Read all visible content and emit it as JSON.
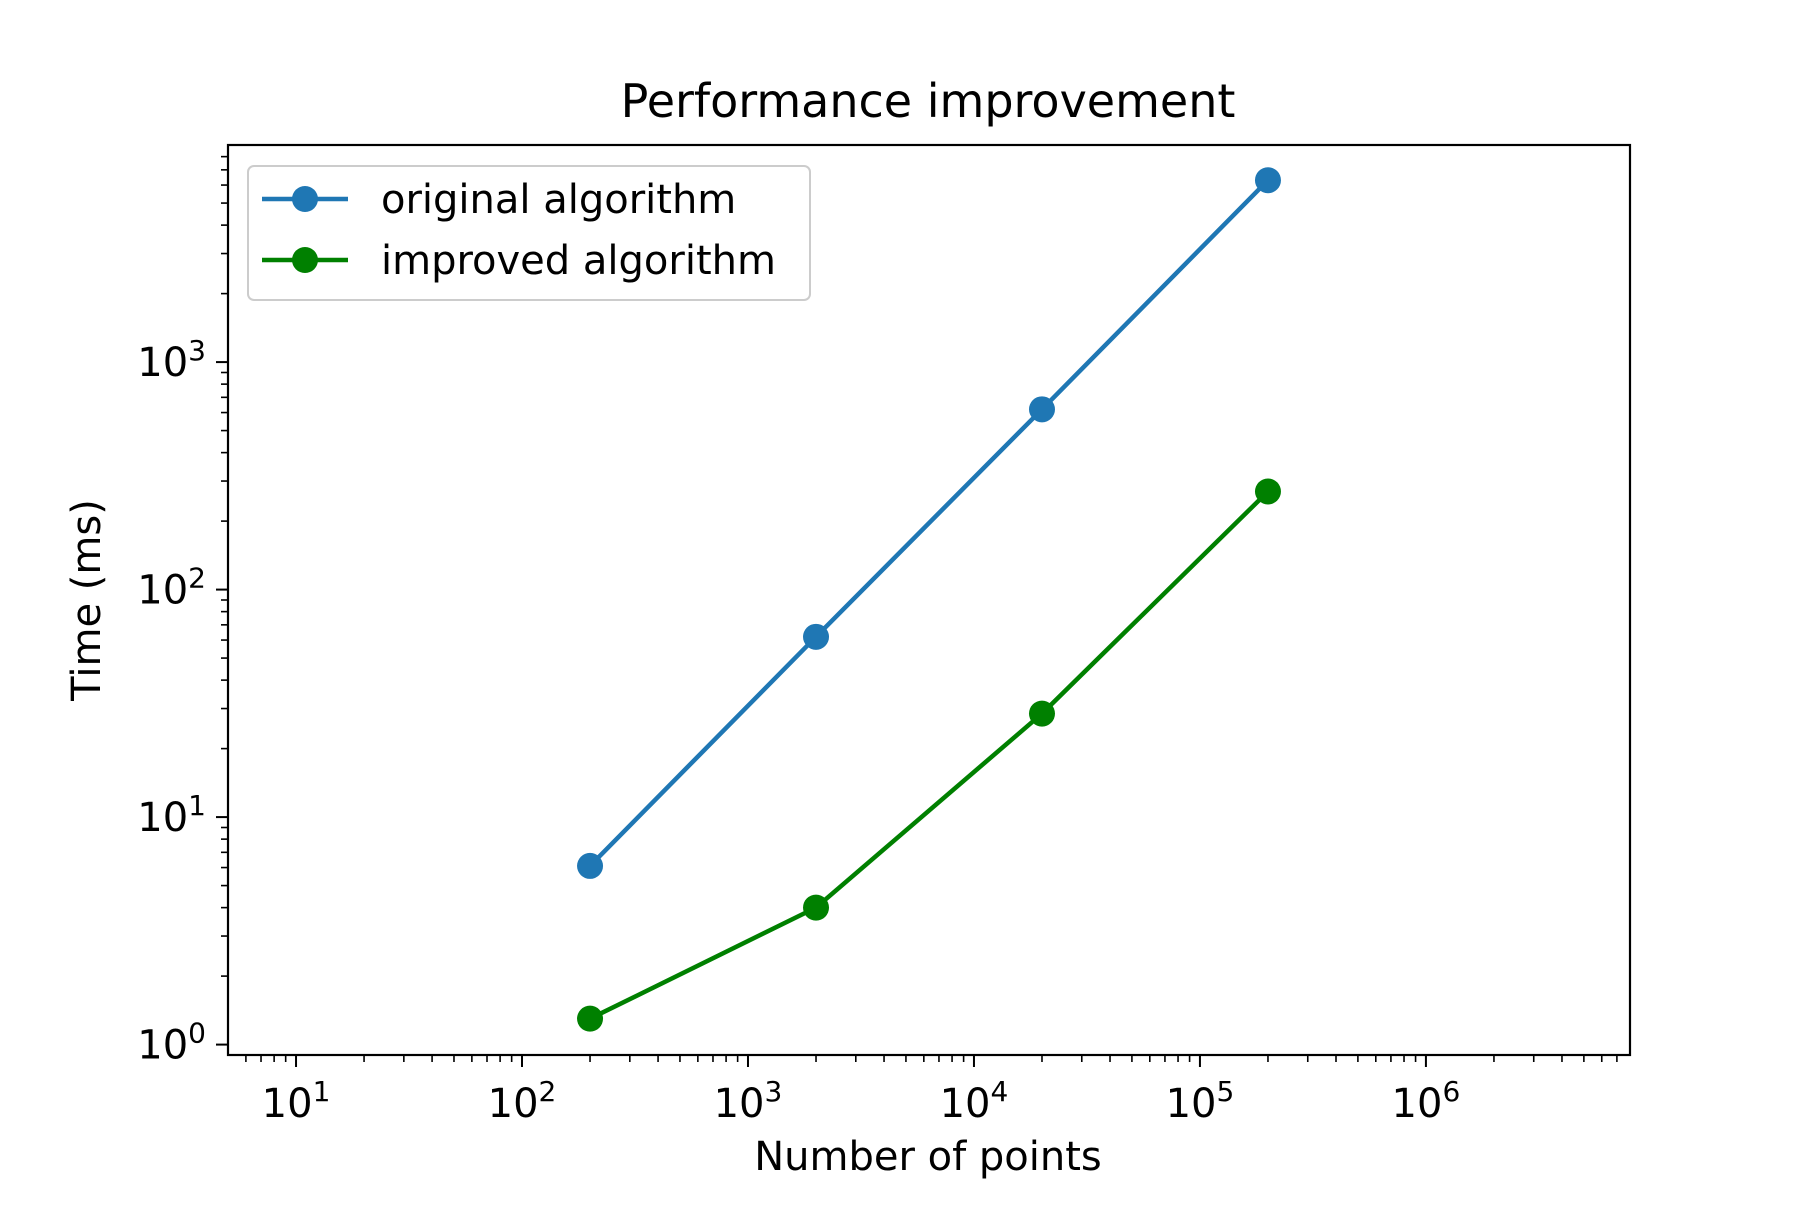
{
  "chart_data": {
    "type": "line",
    "title": "Performance improvement",
    "xlabel": "Number of points",
    "ylabel": "Time (ms)",
    "xscale": "log",
    "yscale": "log",
    "xlim": [
      5,
      8000000
    ],
    "ylim": [
      0.9,
      9000
    ],
    "grid": false,
    "legend_position": "top-left",
    "x_ticks": [
      {
        "value": 10,
        "base": "10",
        "exp": "1"
      },
      {
        "value": 100,
        "base": "10",
        "exp": "2"
      },
      {
        "value": 1000,
        "base": "10",
        "exp": "3"
      },
      {
        "value": 10000,
        "base": "10",
        "exp": "4"
      },
      {
        "value": 100000,
        "base": "10",
        "exp": "5"
      },
      {
        "value": 1000000,
        "base": "10",
        "exp": "6"
      }
    ],
    "y_ticks": [
      {
        "value": 1,
        "base": "10",
        "exp": "0"
      },
      {
        "value": 10,
        "base": "10",
        "exp": "1"
      },
      {
        "value": 100,
        "base": "10",
        "exp": "2"
      },
      {
        "value": 1000,
        "base": "10",
        "exp": "3"
      }
    ],
    "x": [
      200,
      2000,
      20000,
      200000
    ],
    "series": [
      {
        "name": "original algorithm",
        "color": "#1f77b4",
        "values": [
          6.1,
          62,
          620,
          6300
        ]
      },
      {
        "name": "improved algorithm",
        "color": "#008000",
        "values": [
          1.3,
          4.0,
          28.5,
          270
        ]
      }
    ]
  }
}
